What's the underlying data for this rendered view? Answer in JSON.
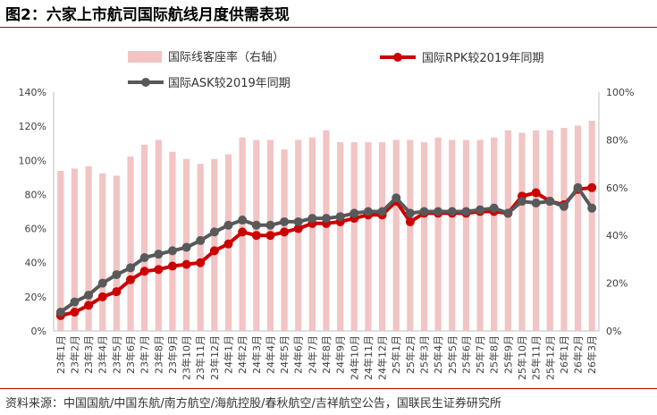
{
  "title": "图2：六家上市航司国际航线月度供需表现",
  "source": "资料来源：中国国航/中国东航/南方航空/海航控股/春秋航空/吉祥航空公告，国联民生证券研究所",
  "colors": {
    "bar": "#f2c4c4",
    "rpk": "#cc0000",
    "ask": "#595959",
    "axis": "#bfbfbf",
    "text": "#404040"
  },
  "chart_data": {
    "type": "bar+line",
    "categories": [
      "23年1月",
      "23年2月",
      "23年3月",
      "23年4月",
      "23年5月",
      "23年6月",
      "23年7月",
      "23年8月",
      "23年9月",
      "23年10月",
      "23年11月",
      "23年12月",
      "24年1月",
      "24年2月",
      "24年3月",
      "24年4月",
      "24年5月",
      "24年6月",
      "24年7月",
      "24年8月",
      "24年9月",
      "24年10月",
      "24年11月",
      "24年12月",
      "25年1月",
      "25年2月",
      "25年3月",
      "25年4月",
      "25年5月",
      "25年6月",
      "25年7月",
      "25年8月",
      "25年9月",
      "25年10月",
      "25年11月",
      "25年12月",
      "26年1月",
      "26年2月",
      "26年3月"
    ],
    "left_axis": {
      "min": 0,
      "max": 140,
      "step": 20,
      "ticks": [
        "0%",
        "20%",
        "40%",
        "60%",
        "80%",
        "100%",
        "120%",
        "140%"
      ]
    },
    "right_axis": {
      "min": 0,
      "max": 100,
      "step": 20,
      "ticks": [
        "0%",
        "20%",
        "40%",
        "60%",
        "80%",
        "100%"
      ]
    },
    "legend": {
      "position": "top"
    },
    "series": [
      {
        "name": "国际线客座率（右轴）",
        "type": "bar",
        "axis": "right",
        "values": [
          67,
          68,
          69,
          66,
          65,
          73,
          78,
          80,
          75,
          72,
          70,
          72,
          74,
          81,
          80,
          80,
          76,
          80,
          81,
          84,
          79,
          79,
          79,
          79,
          80,
          80,
          79,
          81,
          80,
          80,
          80,
          81,
          84,
          83,
          84,
          84,
          85,
          86,
          88
        ]
      },
      {
        "name": "国际RPK较2019年同期",
        "type": "line",
        "axis": "left",
        "values": [
          9,
          11,
          15,
          20,
          23,
          30,
          35,
          36,
          38,
          39,
          40,
          47,
          51,
          58,
          56,
          56,
          58,
          60,
          63,
          63,
          64,
          66,
          68,
          68,
          76,
          64,
          69,
          69,
          69,
          69,
          70,
          70,
          69,
          79,
          81,
          76,
          74,
          83,
          84
        ]
      },
      {
        "name": "国际ASK较2019年同期",
        "type": "line",
        "axis": "left",
        "values": [
          11,
          17,
          21,
          28,
          33,
          37,
          43,
          45,
          47,
          49,
          53,
          58,
          62,
          65,
          62,
          62,
          64,
          64,
          66,
          66,
          67,
          69,
          70,
          70,
          78,
          69,
          70,
          70,
          70,
          70,
          71,
          72,
          69,
          76,
          75,
          76,
          73,
          84,
          72
        ]
      }
    ]
  }
}
